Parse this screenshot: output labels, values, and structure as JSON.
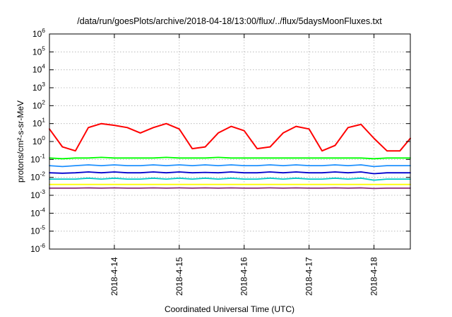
{
  "chart_data": {
    "type": "line",
    "title": "/data/run/goesPlots/archive/2018-04-18/13:00/flux/../flux/5daysMoonFluxes.txt",
    "xlabel": "Coordinated Universal Time (UTC)",
    "ylabel": "protons/cm²-s-sr-MeV",
    "y_scale": "log",
    "ylim": [
      1e-06,
      1000000.0
    ],
    "xlim": [
      13.0,
      18.56
    ],
    "x_unit": "day of April 2018 (UTC)",
    "grid": true,
    "y_ticks": [
      {
        "base": "10",
        "exp": "6"
      },
      {
        "base": "10",
        "exp": "5"
      },
      {
        "base": "10",
        "exp": "4"
      },
      {
        "base": "10",
        "exp": "3"
      },
      {
        "base": "10",
        "exp": "2"
      },
      {
        "base": "10",
        "exp": "1"
      },
      {
        "base": "10",
        "exp": "0"
      },
      {
        "base": "10",
        "exp": "-1"
      },
      {
        "base": "10",
        "exp": "-2"
      },
      {
        "base": "10",
        "exp": "-3"
      },
      {
        "base": "10",
        "exp": "-4"
      },
      {
        "base": "10",
        "exp": "-5"
      },
      {
        "base": "10",
        "exp": "-6"
      }
    ],
    "x_ticks": [
      "2018-4-14",
      "2018-4-15",
      "2018-4-16",
      "2018-4-17",
      "2018-4-18"
    ],
    "x": [
      13.0,
      13.2,
      13.4,
      13.6,
      13.8,
      14.0,
      14.2,
      14.4,
      14.6,
      14.8,
      15.0,
      15.2,
      15.4,
      15.6,
      15.8,
      16.0,
      16.2,
      16.4,
      16.6,
      16.8,
      17.0,
      17.2,
      17.4,
      17.6,
      17.8,
      18.0,
      18.2,
      18.4,
      18.56
    ],
    "series": [
      {
        "color": "#ff0000",
        "values": [
          5,
          0.5,
          0.3,
          6,
          10,
          8,
          6,
          3,
          6,
          10,
          5,
          0.4,
          0.5,
          3,
          7,
          4,
          0.4,
          0.5,
          3,
          7,
          5,
          0.3,
          0.6,
          6,
          9,
          1.5,
          0.3,
          0.3,
          1.5
        ]
      },
      {
        "color": "#00ff00",
        "values": [
          0.12,
          0.11,
          0.12,
          0.12,
          0.13,
          0.12,
          0.12,
          0.12,
          0.12,
          0.13,
          0.12,
          0.12,
          0.12,
          0.13,
          0.12,
          0.12,
          0.12,
          0.12,
          0.12,
          0.12,
          0.12,
          0.12,
          0.12,
          0.12,
          0.12,
          0.11,
          0.12,
          0.12,
          0.12
        ]
      },
      {
        "color": "#1e90ff",
        "values": [
          0.045,
          0.04,
          0.045,
          0.05,
          0.045,
          0.05,
          0.045,
          0.045,
          0.05,
          0.045,
          0.05,
          0.045,
          0.05,
          0.045,
          0.05,
          0.045,
          0.045,
          0.05,
          0.045,
          0.05,
          0.045,
          0.045,
          0.05,
          0.045,
          0.05,
          0.04,
          0.045,
          0.045,
          0.045
        ]
      },
      {
        "color": "#0000cd",
        "values": [
          0.018,
          0.017,
          0.018,
          0.02,
          0.018,
          0.02,
          0.018,
          0.018,
          0.02,
          0.018,
          0.02,
          0.018,
          0.019,
          0.018,
          0.02,
          0.018,
          0.018,
          0.02,
          0.018,
          0.02,
          0.018,
          0.018,
          0.02,
          0.018,
          0.02,
          0.016,
          0.018,
          0.018,
          0.018
        ]
      },
      {
        "color": "#00c8c8",
        "values": [
          0.008,
          0.008,
          0.008,
          0.009,
          0.008,
          0.009,
          0.008,
          0.008,
          0.009,
          0.008,
          0.009,
          0.008,
          0.009,
          0.008,
          0.009,
          0.008,
          0.008,
          0.009,
          0.008,
          0.009,
          0.008,
          0.008,
          0.009,
          0.008,
          0.009,
          0.007,
          0.008,
          0.008,
          0.008
        ]
      },
      {
        "color": "#ffff00",
        "values": [
          0.004,
          0.004,
          0.004,
          0.004,
          0.004,
          0.004,
          0.004,
          0.004,
          0.004,
          0.004,
          0.004,
          0.004,
          0.004,
          0.004,
          0.004,
          0.004,
          0.004,
          0.004,
          0.004,
          0.004,
          0.004,
          0.004,
          0.004,
          0.004,
          0.004,
          0.004,
          0.004,
          0.004,
          0.004
        ]
      },
      {
        "color": "#8b2a7a",
        "values": [
          0.0025,
          0.0025,
          0.0025,
          0.0026,
          0.0025,
          0.0026,
          0.0025,
          0.0025,
          0.0026,
          0.0025,
          0.0026,
          0.0025,
          0.0026,
          0.0025,
          0.0026,
          0.0025,
          0.0025,
          0.0026,
          0.0025,
          0.0026,
          0.0025,
          0.0025,
          0.0026,
          0.0025,
          0.0026,
          0.0024,
          0.0025,
          0.0025,
          0.0025
        ]
      }
    ]
  }
}
